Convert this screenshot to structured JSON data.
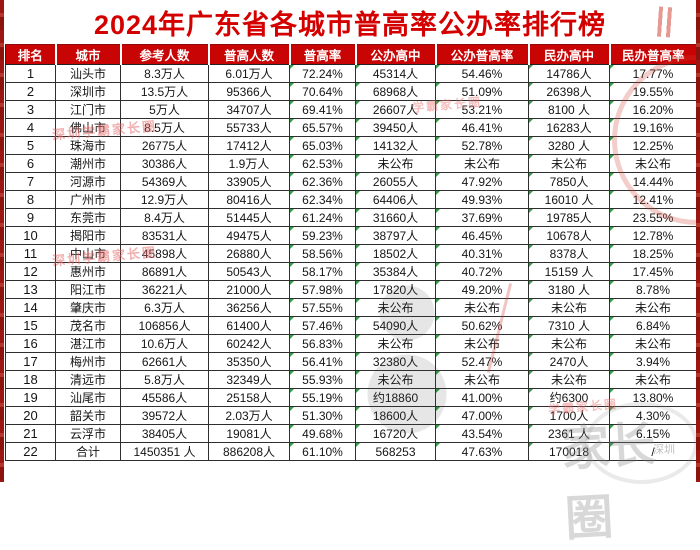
{
  "title": "2024年广东省各城市普高率公办率排行榜",
  "colors": {
    "title_red": "#d40000",
    "header_bg": "#c90404",
    "flag_green": "#2f9e44",
    "edge_red": "#9c1712"
  },
  "table": {
    "columns": [
      "排名",
      "城市",
      "参考人数",
      "普高人数",
      "普高率",
      "公办高中",
      "公办普高率",
      "民办高中",
      "民办普高率"
    ],
    "rows": [
      [
        "1",
        "汕头市",
        "8.3万人",
        "6.01万人",
        "72.24%",
        "45314人",
        "54.46%",
        "14786人",
        "17.77%"
      ],
      [
        "2",
        "深圳市",
        "13.5万人",
        "95366人",
        "70.64%",
        "68968人",
        "51.09%",
        "26398人",
        "19.55%"
      ],
      [
        "3",
        "江门市",
        "5万人",
        "34707人",
        "69.41%",
        "26607人",
        "53.21%",
        "8100 人",
        "16.20%"
      ],
      [
        "4",
        "佛山市",
        "8.5万人",
        "55733人",
        "65.57%",
        "39450人",
        "46.41%",
        "16283人",
        "19.16%"
      ],
      [
        "5",
        "珠海市",
        "26775人",
        "17412人",
        "65.03%",
        "14132人",
        "52.78%",
        "3280 人",
        "12.25%"
      ],
      [
        "6",
        "潮州市",
        "30386人",
        "1.9万人",
        "62.53%",
        "未公布",
        "未公布",
        "未公布",
        "未公布"
      ],
      [
        "7",
        "河源市",
        "54369人",
        "33905人",
        "62.36%",
        "26055人",
        "47.92%",
        "7850人",
        "14.44%"
      ],
      [
        "8",
        "广州市",
        "12.9万人",
        "80416人",
        "62.34%",
        "64406人",
        "49.93%",
        "16010 人",
        "12.41%"
      ],
      [
        "9",
        "东莞市",
        "8.4万人",
        "51445人",
        "61.24%",
        "31660人",
        "37.69%",
        "19785人",
        "23.55%"
      ],
      [
        "10",
        "揭阳市",
        "83531人",
        "49475人",
        "59.23%",
        "38797人",
        "46.45%",
        "10678人",
        "12.78%"
      ],
      [
        "11",
        "中山市",
        "45898人",
        "26880人",
        "58.56%",
        "18502人",
        "40.31%",
        "8378人",
        "18.25%"
      ],
      [
        "12",
        "惠州市",
        "86891人",
        "50543人",
        "58.17%",
        "35384人",
        "40.72%",
        "15159 人",
        "17.45%"
      ],
      [
        "13",
        "阳江市",
        "36221人",
        "21000人",
        "57.98%",
        "17820人",
        "49.20%",
        "3180 人",
        "8.78%"
      ],
      [
        "14",
        "肇庆市",
        "6.3万人",
        "36256人",
        "57.55%",
        "未公布",
        "未公布",
        "未公布",
        "未公布"
      ],
      [
        "15",
        "茂名市",
        "106856人",
        "61400人",
        "57.46%",
        "54090人",
        "50.62%",
        "7310 人",
        "6.84%"
      ],
      [
        "16",
        "湛江市",
        "10.6万人",
        "60242人",
        "56.83%",
        "未公布",
        "未公布",
        "未公布",
        "未公布"
      ],
      [
        "17",
        "梅州市",
        "62661人",
        "35350人",
        "56.41%",
        "32380人",
        "52.47%",
        "2470人",
        "3.94%"
      ],
      [
        "18",
        "清远市",
        "5.8万人",
        "32349人",
        "55.93%",
        "未公布",
        "未公布",
        "未公布",
        "未公布"
      ],
      [
        "19",
        "汕尾市",
        "45586人",
        "25158人",
        "55.19%",
        "约18860",
        "41.00%",
        "约6300",
        "13.80%"
      ],
      [
        "20",
        "韶关市",
        "39572人",
        "2.03万人",
        "51.30%",
        "18600人",
        "47.00%",
        "1700人",
        "4.30%"
      ],
      [
        "21",
        "云浮市",
        "38405人",
        "19081人",
        "49.68%",
        "16720人",
        "43.54%",
        "2361 人",
        "6.15%"
      ],
      [
        "22",
        "合计",
        "1450351 人",
        "886208人",
        "61.10%",
        "568253",
        "47.63%",
        "170018",
        "/"
      ]
    ]
  },
  "chart_data": {
    "type": "table",
    "title": "2024年广东省各城市普高率公办率排行榜",
    "columns": [
      "排名",
      "城市",
      "参考人数",
      "普高人数",
      "普高率",
      "公办高中",
      "公办普高率",
      "民办高中",
      "民办普高率"
    ],
    "rows": [
      [
        "1",
        "汕头市",
        "8.3万人",
        "6.01万人",
        "72.24%",
        "45314人",
        "54.46%",
        "14786人",
        "17.77%"
      ],
      [
        "2",
        "深圳市",
        "13.5万人",
        "95366人",
        "70.64%",
        "68968人",
        "51.09%",
        "26398人",
        "19.55%"
      ],
      [
        "3",
        "江门市",
        "5万人",
        "34707人",
        "69.41%",
        "26607人",
        "53.21%",
        "8100 人",
        "16.20%"
      ],
      [
        "4",
        "佛山市",
        "8.5万人",
        "55733人",
        "65.57%",
        "39450人",
        "46.41%",
        "16283人",
        "19.16%"
      ],
      [
        "5",
        "珠海市",
        "26775人",
        "17412人",
        "65.03%",
        "14132人",
        "52.78%",
        "3280 人",
        "12.25%"
      ],
      [
        "6",
        "潮州市",
        "30386人",
        "1.9万人",
        "62.53%",
        "未公布",
        "未公布",
        "未公布",
        "未公布"
      ],
      [
        "7",
        "河源市",
        "54369人",
        "33905人",
        "62.36%",
        "26055人",
        "47.92%",
        "7850人",
        "14.44%"
      ],
      [
        "8",
        "广州市",
        "12.9万人",
        "80416人",
        "62.34%",
        "64406人",
        "49.93%",
        "16010 人",
        "12.41%"
      ],
      [
        "9",
        "东莞市",
        "8.4万人",
        "51445人",
        "61.24%",
        "31660人",
        "37.69%",
        "19785人",
        "23.55%"
      ],
      [
        "10",
        "揭阳市",
        "83531人",
        "49475人",
        "59.23%",
        "38797人",
        "46.45%",
        "10678人",
        "12.78%"
      ],
      [
        "11",
        "中山市",
        "45898人",
        "26880人",
        "58.56%",
        "18502人",
        "40.31%",
        "8378人",
        "18.25%"
      ],
      [
        "12",
        "惠州市",
        "86891人",
        "50543人",
        "58.17%",
        "35384人",
        "40.72%",
        "15159 人",
        "17.45%"
      ],
      [
        "13",
        "阳江市",
        "36221人",
        "21000人",
        "57.98%",
        "17820人",
        "49.20%",
        "3180 人",
        "8.78%"
      ],
      [
        "14",
        "肇庆市",
        "6.3万人",
        "36256人",
        "57.55%",
        "未公布",
        "未公布",
        "未公布",
        "未公布"
      ],
      [
        "15",
        "茂名市",
        "106856人",
        "61400人",
        "57.46%",
        "54090人",
        "50.62%",
        "7310 人",
        "6.84%"
      ],
      [
        "16",
        "湛江市",
        "10.6万人",
        "60242人",
        "56.83%",
        "未公布",
        "未公布",
        "未公布",
        "未公布"
      ],
      [
        "17",
        "梅州市",
        "62661人",
        "35350人",
        "56.41%",
        "32380人",
        "52.47%",
        "2470人",
        "3.94%"
      ],
      [
        "18",
        "清远市",
        "5.8万人",
        "32349人",
        "55.93%",
        "未公布",
        "未公布",
        "未公布",
        "未公布"
      ],
      [
        "19",
        "汕尾市",
        "45586人",
        "25158人",
        "55.19%",
        "约18860",
        "41.00%",
        "约6300",
        "13.80%"
      ],
      [
        "20",
        "韶关市",
        "39572人",
        "2.03万人",
        "51.30%",
        "18600人",
        "47.00%",
        "1700人",
        "4.30%"
      ],
      [
        "21",
        "云浮市",
        "38405人",
        "19081人",
        "49.68%",
        "16720人",
        "43.54%",
        "2361 人",
        "6.15%"
      ],
      [
        "22",
        "合计",
        "1450351 人",
        "886208人",
        "61.10%",
        "568253",
        "47.63%",
        "170018",
        "/"
      ]
    ]
  },
  "watermarks": {
    "red_text": "深圳学霸家长圈",
    "red_text_short": "学霸家长圈",
    "logo_text": "家长圈",
    "city_text": "深圳"
  }
}
